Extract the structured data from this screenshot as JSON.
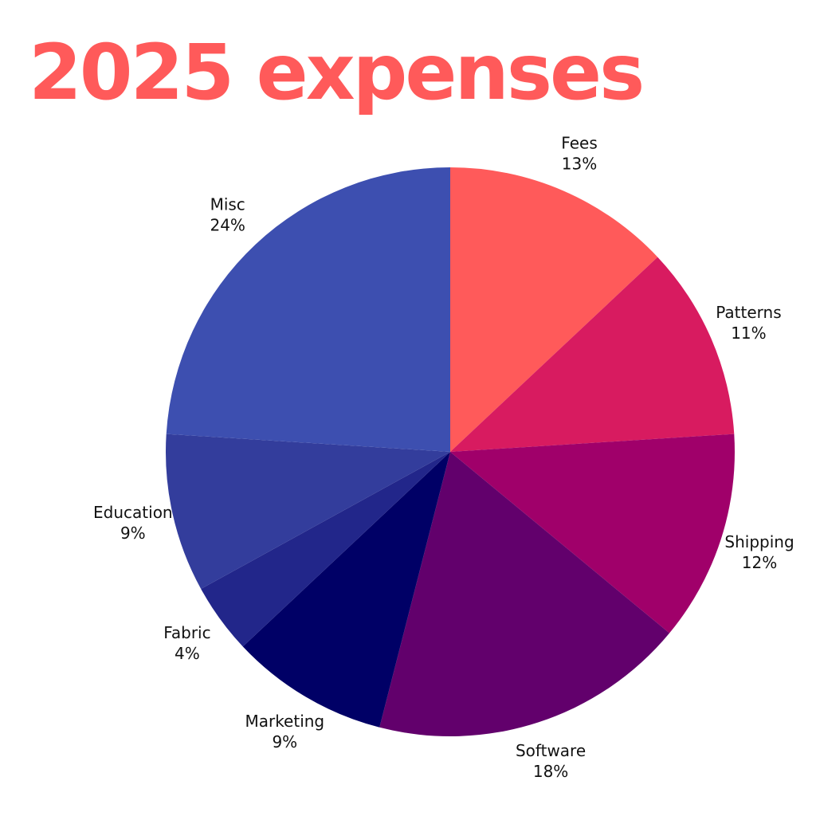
{
  "chart_data": {
    "type": "pie",
    "title": "2025 expenses",
    "categories": [
      "Fees",
      "Patterns",
      "Shipping",
      "Software",
      "Marketing",
      "Fabric",
      "Education",
      "Misc"
    ],
    "values": [
      13,
      11,
      12,
      18,
      9,
      4,
      9,
      24
    ],
    "value_labels": [
      "13%",
      "11%",
      "12%",
      "18%",
      "9%",
      "4%",
      "9%",
      "24%"
    ],
    "colors": [
      "#ff5a5a",
      "#d81b60",
      "#a0006a",
      "#62006c",
      "#000066",
      "#22268a",
      "#333d9c",
      "#3d4fb0"
    ]
  }
}
